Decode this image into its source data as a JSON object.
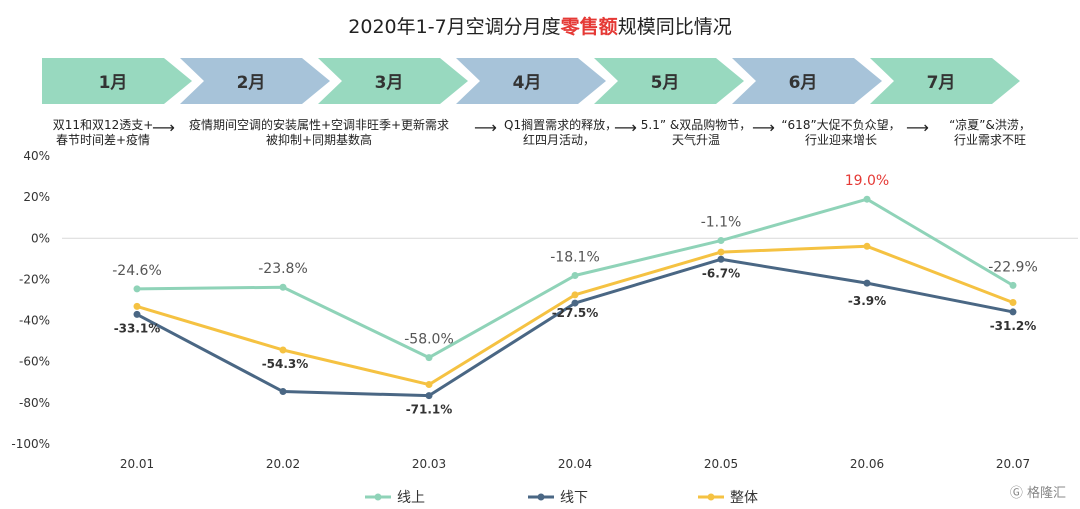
{
  "title_pre": "2020年1-7月空调分月度",
  "title_hl": "零售额",
  "title_post": "规模同比情况",
  "months": [
    "1月",
    "2月",
    "3月",
    "4月",
    "5月",
    "6月",
    "7月"
  ],
  "notes": [
    "双11和双12透支+\n春节时间差+疫情",
    "疫情期间空调的安装属性+空调非旺季+更新需求\n被抑制+同期基数高",
    "Q1搁置需求的释放，\n红四月活动，",
    "5.1” &双品购物节，\n天气升温",
    "“618”大促不负众望，\n行业迎来增长",
    "“凉夏”&洪涝，\n行业需求不旺"
  ],
  "colors": {
    "online": "#8fd3b8",
    "offline": "#4a6784",
    "total": "#f5c242",
    "banner_green": "#98d9bf",
    "banner_blue": "#a7c3d9",
    "highlight": "#e53935"
  },
  "watermark": "格隆汇",
  "chart_data": {
    "type": "line",
    "categories": [
      "20.01",
      "20.02",
      "20.03",
      "20.04",
      "20.05",
      "20.06",
      "20.07"
    ],
    "ylim": [
      -100,
      40
    ],
    "yticks": [
      "40%",
      "20%",
      "0%",
      "-20%",
      "-40%",
      "-60%",
      "-80%",
      "-100%"
    ],
    "ytick_values": [
      40,
      20,
      0,
      -20,
      -40,
      -60,
      -80,
      -100
    ],
    "legend_position": "bottom",
    "series": [
      {
        "name": "线上",
        "key": "online",
        "values": [
          -24.6,
          -23.8,
          -58.0,
          -18.1,
          -1.1,
          19.0,
          -22.9
        ],
        "labels": [
          "-24.6%",
          "-23.8%",
          "-58.0%",
          "-18.1%",
          "-1.1%",
          "19.0%",
          "-22.9%"
        ]
      },
      {
        "name": "线下",
        "key": "offline",
        "values": [
          -37.0,
          -74.5,
          -76.5,
          -31.5,
          -10.2,
          -21.8,
          -35.8
        ],
        "labels": [
          "-33.1%",
          "",
          "-71.1%",
          "-27.5%",
          "-6.7%",
          "-3.9%",
          "-31.2%"
        ]
      },
      {
        "name": "整体",
        "key": "total",
        "values": [
          -33.1,
          -54.3,
          -71.1,
          -27.5,
          -6.7,
          -3.9,
          -31.2
        ],
        "labels": [
          "",
          "-54.3%",
          "",
          "",
          "",
          "",
          ""
        ]
      }
    ]
  }
}
